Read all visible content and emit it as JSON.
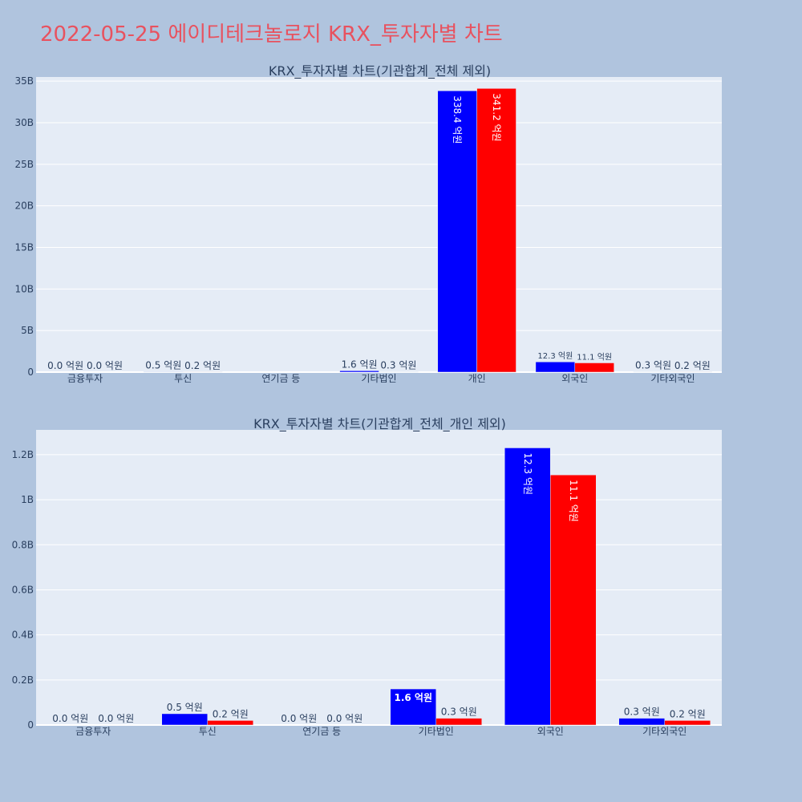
{
  "page": {
    "title": "2022-05-25 에이디테크놀로지 KRX_투자자별 차트"
  },
  "colors": {
    "background": "#b0c4de",
    "plot_bg": "#e5ecf6",
    "grid": "#ffffff",
    "title": "#e8525f",
    "series_buy": "#0000ff",
    "series_sell": "#ff0000"
  },
  "chart_data": [
    {
      "type": "bar",
      "title": "KRX_투자자별 차트(기관합계_전체 제외)",
      "categories": [
        "금융투자",
        "투신",
        "연기금 등",
        "기타법인",
        "개인",
        "외국인",
        "기타외국인"
      ],
      "ylim": [
        0,
        35500000000
      ],
      "yticks": [
        {
          "value": 0,
          "label": "0"
        },
        {
          "value": 5000000000,
          "label": "5B"
        },
        {
          "value": 10000000000,
          "label": "10B"
        },
        {
          "value": 15000000000,
          "label": "15B"
        },
        {
          "value": 20000000000,
          "label": "20B"
        },
        {
          "value": 25000000000,
          "label": "25B"
        },
        {
          "value": 30000000000,
          "label": "30B"
        },
        {
          "value": 35000000000,
          "label": "35B"
        }
      ],
      "grid": true,
      "series": [
        {
          "color": "#0000ff",
          "values": [
            0,
            50000000,
            null,
            160000000,
            33840000000,
            1230000000,
            30000000
          ],
          "labels": [
            "0.0 억원",
            "0.5 억원",
            "",
            "1.6 억원",
            "338.4 억원",
            "12.3 억원",
            "0.3 억원"
          ]
        },
        {
          "color": "#ff0000",
          "values": [
            0,
            20000000,
            null,
            30000000,
            34120000000,
            1110000000,
            20000000
          ],
          "labels": [
            "0.0 억원",
            "0.2 억원",
            "",
            "0.3 억원",
            "341.2 억원",
            "11.1 억원",
            "0.2 억원"
          ]
        }
      ]
    },
    {
      "type": "bar",
      "title": "KRX_투자자별 차트(기관합계_전체_개인 제외)",
      "categories": [
        "금융투자",
        "투신",
        "연기금 등",
        "기타법인",
        "외국인",
        "기타외국인"
      ],
      "ylim": [
        0,
        1310000000
      ],
      "yticks": [
        {
          "value": 0,
          "label": "0"
        },
        {
          "value": 200000000,
          "label": "0.2B"
        },
        {
          "value": 400000000,
          "label": "0.4B"
        },
        {
          "value": 600000000,
          "label": "0.6B"
        },
        {
          "value": 800000000,
          "label": "0.8B"
        },
        {
          "value": 1000000000,
          "label": "1B"
        },
        {
          "value": 1200000000,
          "label": "1.2B"
        }
      ],
      "grid": true,
      "series": [
        {
          "color": "#0000ff",
          "values": [
            0,
            50000000,
            0,
            160000000,
            1230000000,
            30000000
          ],
          "labels": [
            "0.0 억원",
            "0.5 억원",
            "0.0 억원",
            "1.6 억원",
            "12.3 억원",
            "0.3 억원"
          ]
        },
        {
          "color": "#ff0000",
          "values": [
            0,
            20000000,
            0,
            30000000,
            1110000000,
            20000000
          ],
          "labels": [
            "0.0 억원",
            "0.2 억원",
            "0.0 억원",
            "0.3 억원",
            "11.1 억원",
            "0.2 억원"
          ]
        }
      ]
    }
  ]
}
